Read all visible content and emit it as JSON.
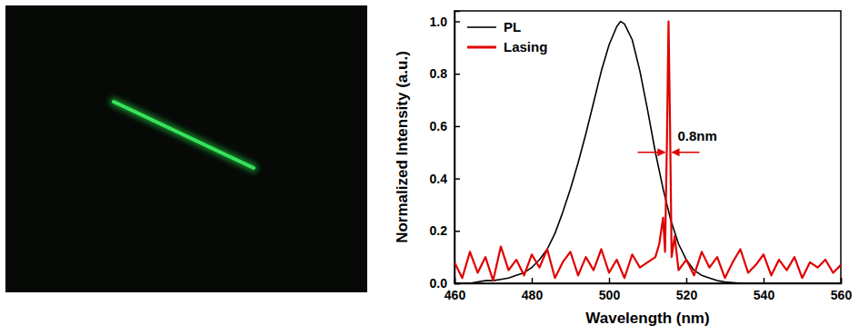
{
  "chart_data": {
    "type": "line",
    "x_label": "Wavelength (nm)",
    "y_label": "Normalized Intensity (a.u.)",
    "xlim": [
      460,
      560
    ],
    "xticks": [
      460,
      480,
      500,
      520,
      540,
      560
    ],
    "ylim": [
      0,
      1.04
    ],
    "yticks": [
      {
        "value": 0,
        "label": "0.0"
      },
      {
        "value": 0.2,
        "label": "0.2"
      },
      {
        "value": 0.4,
        "label": "0.4"
      },
      {
        "value": 0.6,
        "label": "0.6"
      },
      {
        "value": 0.8,
        "label": "0.8"
      },
      {
        "value": 1.0,
        "label": "1.0"
      }
    ],
    "legend": "upper left",
    "grid": false,
    "annotations": [
      {
        "text": "0.8nm"
      }
    ],
    "series": [
      {
        "name": "PL",
        "color": "#000000",
        "x": [
          460,
          462,
          464,
          466,
          468,
          470,
          472,
          474,
          476,
          478,
          480,
          482,
          484,
          486,
          488,
          490,
          492,
          494,
          496,
          498,
          500,
          502,
          503,
          504,
          506,
          508,
          510,
          512,
          514,
          516,
          518,
          520,
          522,
          524,
          526,
          528,
          530,
          534,
          538,
          542,
          546,
          550,
          554,
          558,
          560
        ],
        "values": [
          0,
          0,
          0,
          0.005,
          0.01,
          0.01,
          0.015,
          0.02,
          0.03,
          0.04,
          0.06,
          0.09,
          0.13,
          0.19,
          0.27,
          0.36,
          0.46,
          0.57,
          0.69,
          0.81,
          0.91,
          0.98,
          1.0,
          0.99,
          0.93,
          0.81,
          0.66,
          0.5,
          0.36,
          0.24,
          0.15,
          0.09,
          0.05,
          0.03,
          0.02,
          0.01,
          0.005,
          0,
          0,
          0,
          0,
          0,
          0,
          0,
          0
        ]
      },
      {
        "name": "Lasing",
        "color": "#e00000",
        "x": [
          460,
          462,
          464,
          466,
          468,
          470,
          472,
          474,
          476,
          478,
          480,
          482,
          484,
          486,
          488,
          490,
          492,
          494,
          496,
          498,
          500,
          502,
          504,
          506,
          508,
          510,
          512,
          513,
          514,
          514.5,
          515,
          515.4,
          515.8,
          516.2,
          517,
          518,
          520,
          522,
          524,
          526,
          528,
          530,
          532,
          534,
          536,
          538,
          540,
          542,
          544,
          546,
          548,
          550,
          552,
          554,
          556,
          558,
          560
        ],
        "values": [
          0.08,
          0.02,
          0.12,
          0.04,
          0.1,
          0.01,
          0.14,
          0.05,
          0.09,
          0.03,
          0.11,
          0.06,
          0.13,
          0.02,
          0.08,
          0.12,
          0.03,
          0.1,
          0.05,
          0.13,
          0.04,
          0.09,
          0.02,
          0.11,
          0.06,
          0.08,
          0.1,
          0.15,
          0.25,
          0.12,
          0.55,
          1.0,
          0.6,
          0.1,
          0.18,
          0.05,
          0.09,
          0.03,
          0.12,
          0.06,
          0.1,
          0.02,
          0.08,
          0.13,
          0.04,
          0.07,
          0.11,
          0.03,
          0.09,
          0.05,
          0.1,
          0.02,
          0.08,
          0.06,
          0.09,
          0.04,
          0.07
        ]
      }
    ]
  }
}
